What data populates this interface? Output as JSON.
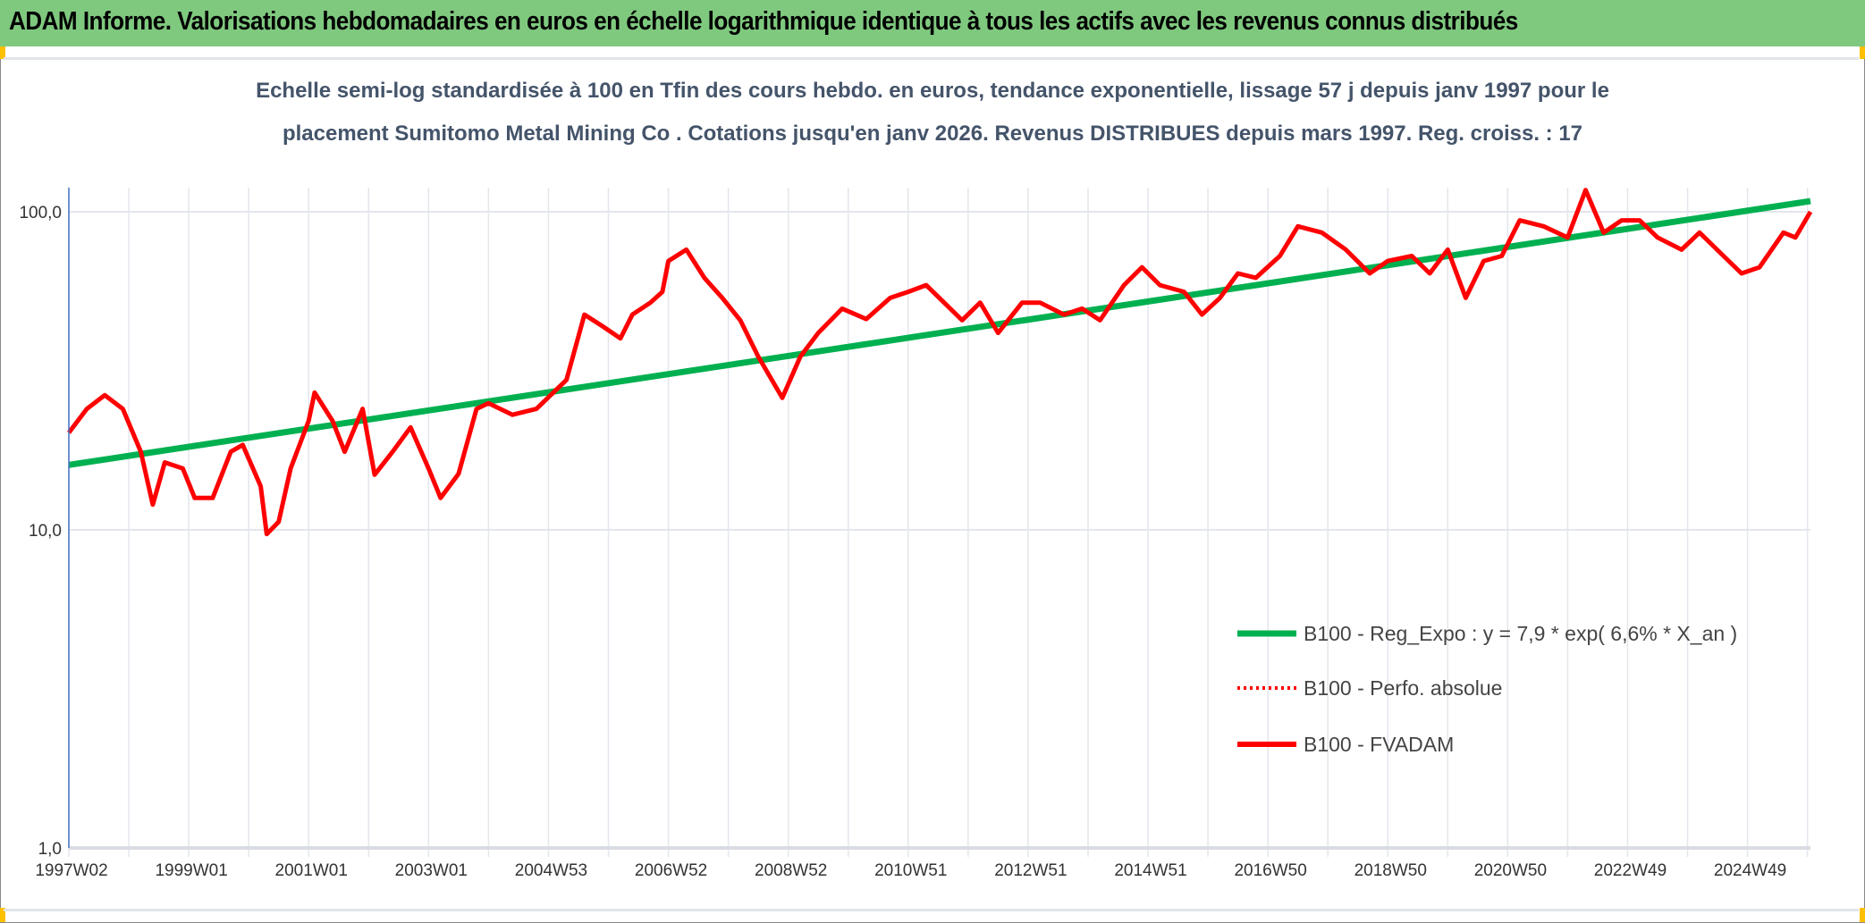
{
  "header": {
    "title": "ADAM Informe. Valorisations hebdomadaires en euros en échelle logarithmique identique à tous les actifs avec les revenus connus distribués"
  },
  "chart_data": {
    "type": "line",
    "title_lines": [
      "Echelle semi-log standardisée à 100 en Tfin des cours hebdo. en euros, tendance exponentielle, lissage 57 j depuis janv 1997 pour le",
      "placement Sumitomo Metal Mining Co . Cotations jusqu'en janv 2026. Revenus DISTRIBUES depuis mars 1997. Reg. croiss. : 17"
    ],
    "y_scale": "log",
    "ylim": [
      1,
      100
    ],
    "y_ticks": [
      "1,0",
      "10,0",
      "100,0"
    ],
    "x_range": [
      1997.0,
      2026.05
    ],
    "x_tick_labels": [
      "1997W02",
      "1999W01",
      "2001W01",
      "2003W01",
      "2004W53",
      "2006W52",
      "2008W52",
      "2010W51",
      "2012W51",
      "2014W51",
      "2016W50",
      "2018W50",
      "2020W50",
      "2022W49",
      "2024W49"
    ],
    "grid": true,
    "legend_placement": "bottom-right",
    "colors": {
      "trend": "#00b050",
      "fvadam": "#ff0000",
      "perfo": "#ff0000"
    },
    "series": [
      {
        "name": "B100 - Reg_Expo : y = 7,9 * exp( 6,6% *  X_an )",
        "style": "solid-thick",
        "x": [
          1997.0,
          2026.05
        ],
        "y": [
          16,
          108
        ]
      },
      {
        "name": "B100 - Perfo. absolue",
        "style": "dotted",
        "x": [],
        "y": []
      },
      {
        "name": "B100 - FVADAM",
        "style": "solid",
        "x": [
          1997.0,
          1997.3,
          1997.6,
          1997.9,
          1998.2,
          1998.4,
          1998.6,
          1998.9,
          1999.1,
          1999.4,
          1999.7,
          1999.9,
          2000.2,
          2000.3,
          2000.5,
          2000.7,
          2001.0,
          2001.1,
          2001.4,
          2001.6,
          2001.9,
          2002.1,
          2002.4,
          2002.7,
          2003.0,
          2003.2,
          2003.5,
          2003.8,
          2004.0,
          2004.4,
          2004.8,
          2005.3,
          2005.6,
          2005.9,
          2006.2,
          2006.4,
          2006.7,
          2006.9,
          2007.0,
          2007.3,
          2007.6,
          2007.9,
          2008.2,
          2008.5,
          2008.9,
          2009.2,
          2009.5,
          2009.9,
          2010.3,
          2010.7,
          2011.0,
          2011.3,
          2011.6,
          2011.9,
          2012.2,
          2012.5,
          2012.9,
          2013.2,
          2013.6,
          2013.9,
          2014.2,
          2014.6,
          2014.9,
          2015.2,
          2015.6,
          2015.9,
          2016.2,
          2016.5,
          2016.8,
          2017.2,
          2017.5,
          2017.9,
          2018.3,
          2018.7,
          2019.0,
          2019.4,
          2019.7,
          2020.0,
          2020.3,
          2020.6,
          2020.9,
          2021.2,
          2021.6,
          2022.0,
          2022.3,
          2022.6,
          2022.9,
          2023.2,
          2023.5,
          2023.9,
          2024.2,
          2024.6,
          2024.9,
          2025.2,
          2025.6,
          2025.8,
          2026.05
        ],
        "y": [
          20.2,
          24,
          26.5,
          24,
          17.6,
          12,
          16.3,
          15.6,
          12.6,
          12.6,
          17.6,
          18.5,
          13.7,
          9.7,
          10.6,
          15.6,
          22,
          27,
          22,
          17.6,
          24,
          14.9,
          17.6,
          21,
          15.6,
          12.6,
          15,
          24,
          25,
          23,
          24,
          29.6,
          47.5,
          43.7,
          40,
          47.5,
          51.8,
          56,
          70,
          76,
          62,
          53.6,
          45.6,
          35,
          26,
          35,
          41.6,
          49.6,
          46,
          53.6,
          56,
          58.8,
          51.8,
          45.6,
          51.8,
          41.6,
          51.8,
          51.8,
          47.5,
          49.6,
          45.6,
          58.8,
          66.9,
          58.8,
          56,
          47.5,
          53.6,
          64,
          62,
          72.6,
          90,
          86,
          76,
          64,
          70,
          72.6,
          64,
          76,
          53.6,
          70,
          72.6,
          94,
          90,
          83,
          117,
          86,
          94,
          94,
          83,
          76,
          86,
          72.6,
          64,
          66.9,
          86,
          83,
          100
        ]
      }
    ]
  }
}
